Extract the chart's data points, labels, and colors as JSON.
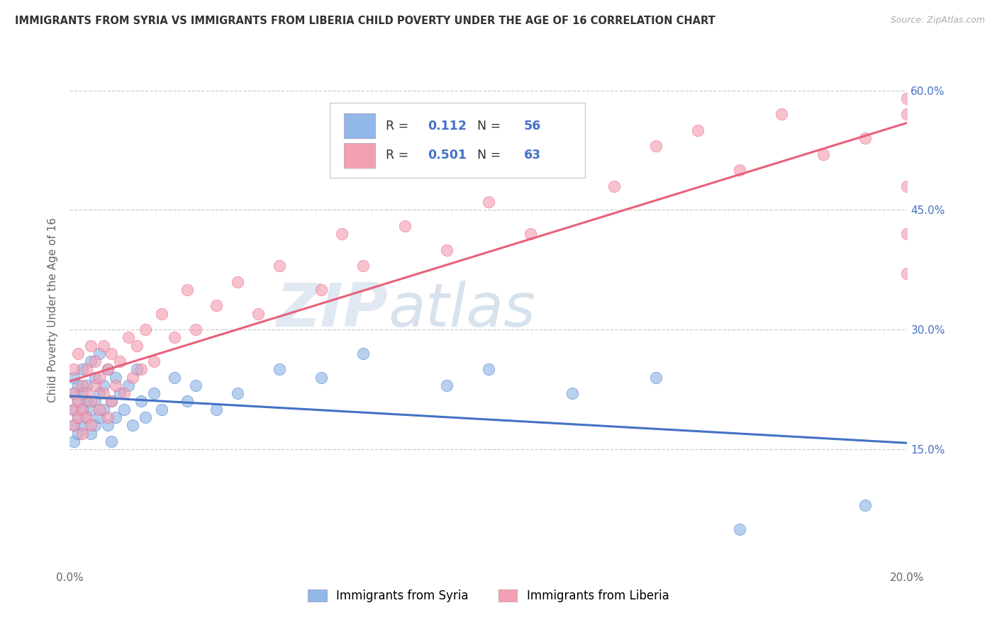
{
  "title": "IMMIGRANTS FROM SYRIA VS IMMIGRANTS FROM LIBERIA CHILD POVERTY UNDER THE AGE OF 16 CORRELATION CHART",
  "source": "Source: ZipAtlas.com",
  "ylabel": "Child Poverty Under the Age of 16",
  "xlim": [
    0.0,
    0.2
  ],
  "ylim": [
    0.0,
    0.65
  ],
  "yticks": [
    0.15,
    0.3,
    0.45,
    0.6
  ],
  "ytick_labels": [
    "15.0%",
    "30.0%",
    "45.0%",
    "60.0%"
  ],
  "xticks": [
    0.0,
    0.05,
    0.1,
    0.15,
    0.2
  ],
  "xtick_labels": [
    "0.0%",
    "",
    "",
    "",
    "20.0%"
  ],
  "legend_r_syria": "0.112",
  "legend_n_syria": "56",
  "legend_r_liberia": "0.501",
  "legend_n_liberia": "63",
  "color_syria": "#91b8e8",
  "color_liberia": "#f4a0b4",
  "color_trend_syria": "#4472c4",
  "color_trend_liberia": "#e8607a",
  "watermark_zip": "ZIP",
  "watermark_atlas": "atlas",
  "scatter_label_syria": "Immigrants from Syria",
  "scatter_label_liberia": "Immigrants from Liberia",
  "syria_x": [
    0.001,
    0.001,
    0.001,
    0.001,
    0.001,
    0.002,
    0.002,
    0.002,
    0.002,
    0.003,
    0.003,
    0.003,
    0.003,
    0.004,
    0.004,
    0.004,
    0.005,
    0.005,
    0.005,
    0.006,
    0.006,
    0.006,
    0.007,
    0.007,
    0.007,
    0.008,
    0.008,
    0.009,
    0.009,
    0.01,
    0.01,
    0.011,
    0.011,
    0.012,
    0.013,
    0.014,
    0.015,
    0.016,
    0.017,
    0.018,
    0.02,
    0.022,
    0.025,
    0.028,
    0.03,
    0.035,
    0.04,
    0.05,
    0.06,
    0.07,
    0.09,
    0.1,
    0.12,
    0.14,
    0.16,
    0.19
  ],
  "syria_y": [
    0.18,
    0.2,
    0.22,
    0.16,
    0.24,
    0.19,
    0.21,
    0.17,
    0.23,
    0.2,
    0.18,
    0.22,
    0.25,
    0.19,
    0.21,
    0.23,
    0.17,
    0.2,
    0.26,
    0.18,
    0.21,
    0.24,
    0.19,
    0.22,
    0.27,
    0.2,
    0.23,
    0.18,
    0.25,
    0.21,
    0.16,
    0.24,
    0.19,
    0.22,
    0.2,
    0.23,
    0.18,
    0.25,
    0.21,
    0.19,
    0.22,
    0.2,
    0.24,
    0.21,
    0.23,
    0.2,
    0.22,
    0.25,
    0.24,
    0.27,
    0.23,
    0.25,
    0.22,
    0.24,
    0.05,
    0.08
  ],
  "liberia_x": [
    0.001,
    0.001,
    0.001,
    0.001,
    0.002,
    0.002,
    0.002,
    0.003,
    0.003,
    0.003,
    0.004,
    0.004,
    0.004,
    0.005,
    0.005,
    0.005,
    0.006,
    0.006,
    0.007,
    0.007,
    0.008,
    0.008,
    0.009,
    0.009,
    0.01,
    0.01,
    0.011,
    0.012,
    0.013,
    0.014,
    0.015,
    0.016,
    0.017,
    0.018,
    0.02,
    0.022,
    0.025,
    0.028,
    0.03,
    0.035,
    0.04,
    0.045,
    0.05,
    0.06,
    0.065,
    0.07,
    0.08,
    0.09,
    0.1,
    0.11,
    0.12,
    0.13,
    0.14,
    0.15,
    0.16,
    0.17,
    0.18,
    0.19,
    0.2,
    0.2,
    0.2,
    0.2,
    0.2
  ],
  "liberia_y": [
    0.2,
    0.22,
    0.18,
    0.25,
    0.19,
    0.21,
    0.27,
    0.2,
    0.23,
    0.17,
    0.22,
    0.25,
    0.19,
    0.21,
    0.28,
    0.18,
    0.23,
    0.26,
    0.2,
    0.24,
    0.22,
    0.28,
    0.19,
    0.25,
    0.21,
    0.27,
    0.23,
    0.26,
    0.22,
    0.29,
    0.24,
    0.28,
    0.25,
    0.3,
    0.26,
    0.32,
    0.29,
    0.35,
    0.3,
    0.33,
    0.36,
    0.32,
    0.38,
    0.35,
    0.42,
    0.38,
    0.43,
    0.4,
    0.46,
    0.42,
    0.5,
    0.48,
    0.53,
    0.55,
    0.5,
    0.57,
    0.52,
    0.54,
    0.48,
    0.42,
    0.37,
    0.57,
    0.59
  ]
}
